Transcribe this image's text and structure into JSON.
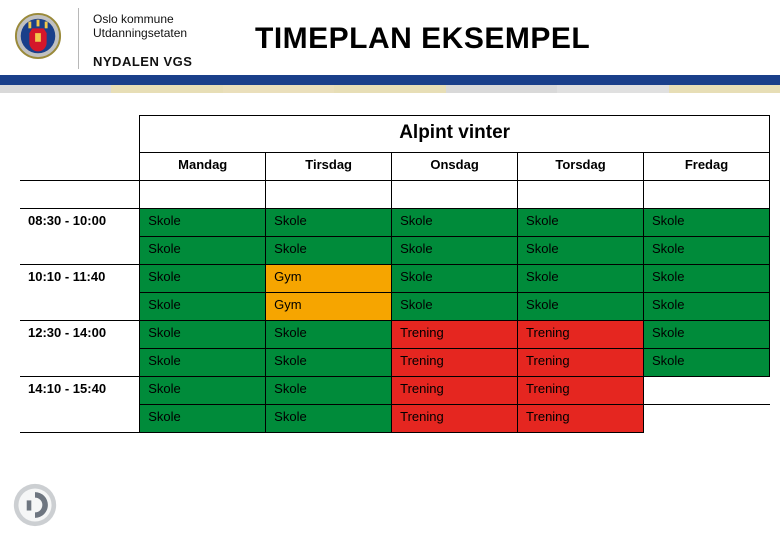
{
  "header": {
    "org_line1": "Oslo kommune",
    "org_line2": "Utdanningsetaten",
    "school": "NYDALEN VGS",
    "title": "TIMEPLAN EKSEMPEL"
  },
  "band_colors": [
    "#d9d9d9",
    "#e7deb6",
    "#eadfbb",
    "#e7deb6",
    "#d9d9d9",
    "#e0e0e0",
    "#e7deb6"
  ],
  "colors": {
    "skole": "#008b3a",
    "gym": "#f6a500",
    "trening": "#e52620",
    "blank": "#ffffff"
  },
  "timetable": {
    "title": "Alpint vinter",
    "days": [
      "Mandag",
      "Tirsdag",
      "Onsdag",
      "Torsdag",
      "Fredag"
    ],
    "times": [
      "08:30 - 10:00",
      "10:10 - 11:40",
      "12:30 - 14:00",
      "14:10 - 15:40"
    ],
    "rows": [
      {
        "time_block": 0,
        "cells": [
          {
            "t": "Skole",
            "c": "skole"
          },
          {
            "t": "Skole",
            "c": "skole"
          },
          {
            "t": "Skole",
            "c": "skole"
          },
          {
            "t": "Skole",
            "c": "skole"
          },
          {
            "t": "Skole",
            "c": "skole"
          }
        ]
      },
      {
        "time_block": 0,
        "cells": [
          {
            "t": "Skole",
            "c": "skole"
          },
          {
            "t": "Skole",
            "c": "skole"
          },
          {
            "t": "Skole",
            "c": "skole"
          },
          {
            "t": "Skole",
            "c": "skole"
          },
          {
            "t": "Skole",
            "c": "skole"
          }
        ]
      },
      {
        "time_block": 1,
        "cells": [
          {
            "t": "Skole",
            "c": "skole"
          },
          {
            "t": "Gym",
            "c": "gym"
          },
          {
            "t": "Skole",
            "c": "skole"
          },
          {
            "t": "Skole",
            "c": "skole"
          },
          {
            "t": "Skole",
            "c": "skole"
          }
        ]
      },
      {
        "time_block": 1,
        "cells": [
          {
            "t": "Skole",
            "c": "skole"
          },
          {
            "t": "Gym",
            "c": "gym"
          },
          {
            "t": "Skole",
            "c": "skole"
          },
          {
            "t": "Skole",
            "c": "skole"
          },
          {
            "t": "Skole",
            "c": "skole"
          }
        ]
      },
      {
        "time_block": 2,
        "cells": [
          {
            "t": "Skole",
            "c": "skole"
          },
          {
            "t": "Skole",
            "c": "skole"
          },
          {
            "t": "Trening",
            "c": "trening"
          },
          {
            "t": "Trening",
            "c": "trening"
          },
          {
            "t": "Skole",
            "c": "skole"
          }
        ]
      },
      {
        "time_block": 2,
        "cells": [
          {
            "t": "Skole",
            "c": "skole"
          },
          {
            "t": "Skole",
            "c": "skole"
          },
          {
            "t": "Trening",
            "c": "trening"
          },
          {
            "t": "Trening",
            "c": "trening"
          },
          {
            "t": "Skole",
            "c": "skole"
          }
        ]
      },
      {
        "time_block": 3,
        "cells": [
          {
            "t": "Skole",
            "c": "skole"
          },
          {
            "t": "Skole",
            "c": "skole"
          },
          {
            "t": "Trening",
            "c": "trening"
          },
          {
            "t": "Trening",
            "c": "trening"
          },
          {
            "t": "",
            "c": "blank"
          }
        ]
      },
      {
        "time_block": 3,
        "cells": [
          {
            "t": "Skole",
            "c": "skole"
          },
          {
            "t": "Skole",
            "c": "skole"
          },
          {
            "t": "Trening",
            "c": "trening"
          },
          {
            "t": "Trening",
            "c": "trening"
          },
          {
            "t": "",
            "c": "blank"
          }
        ]
      }
    ]
  }
}
